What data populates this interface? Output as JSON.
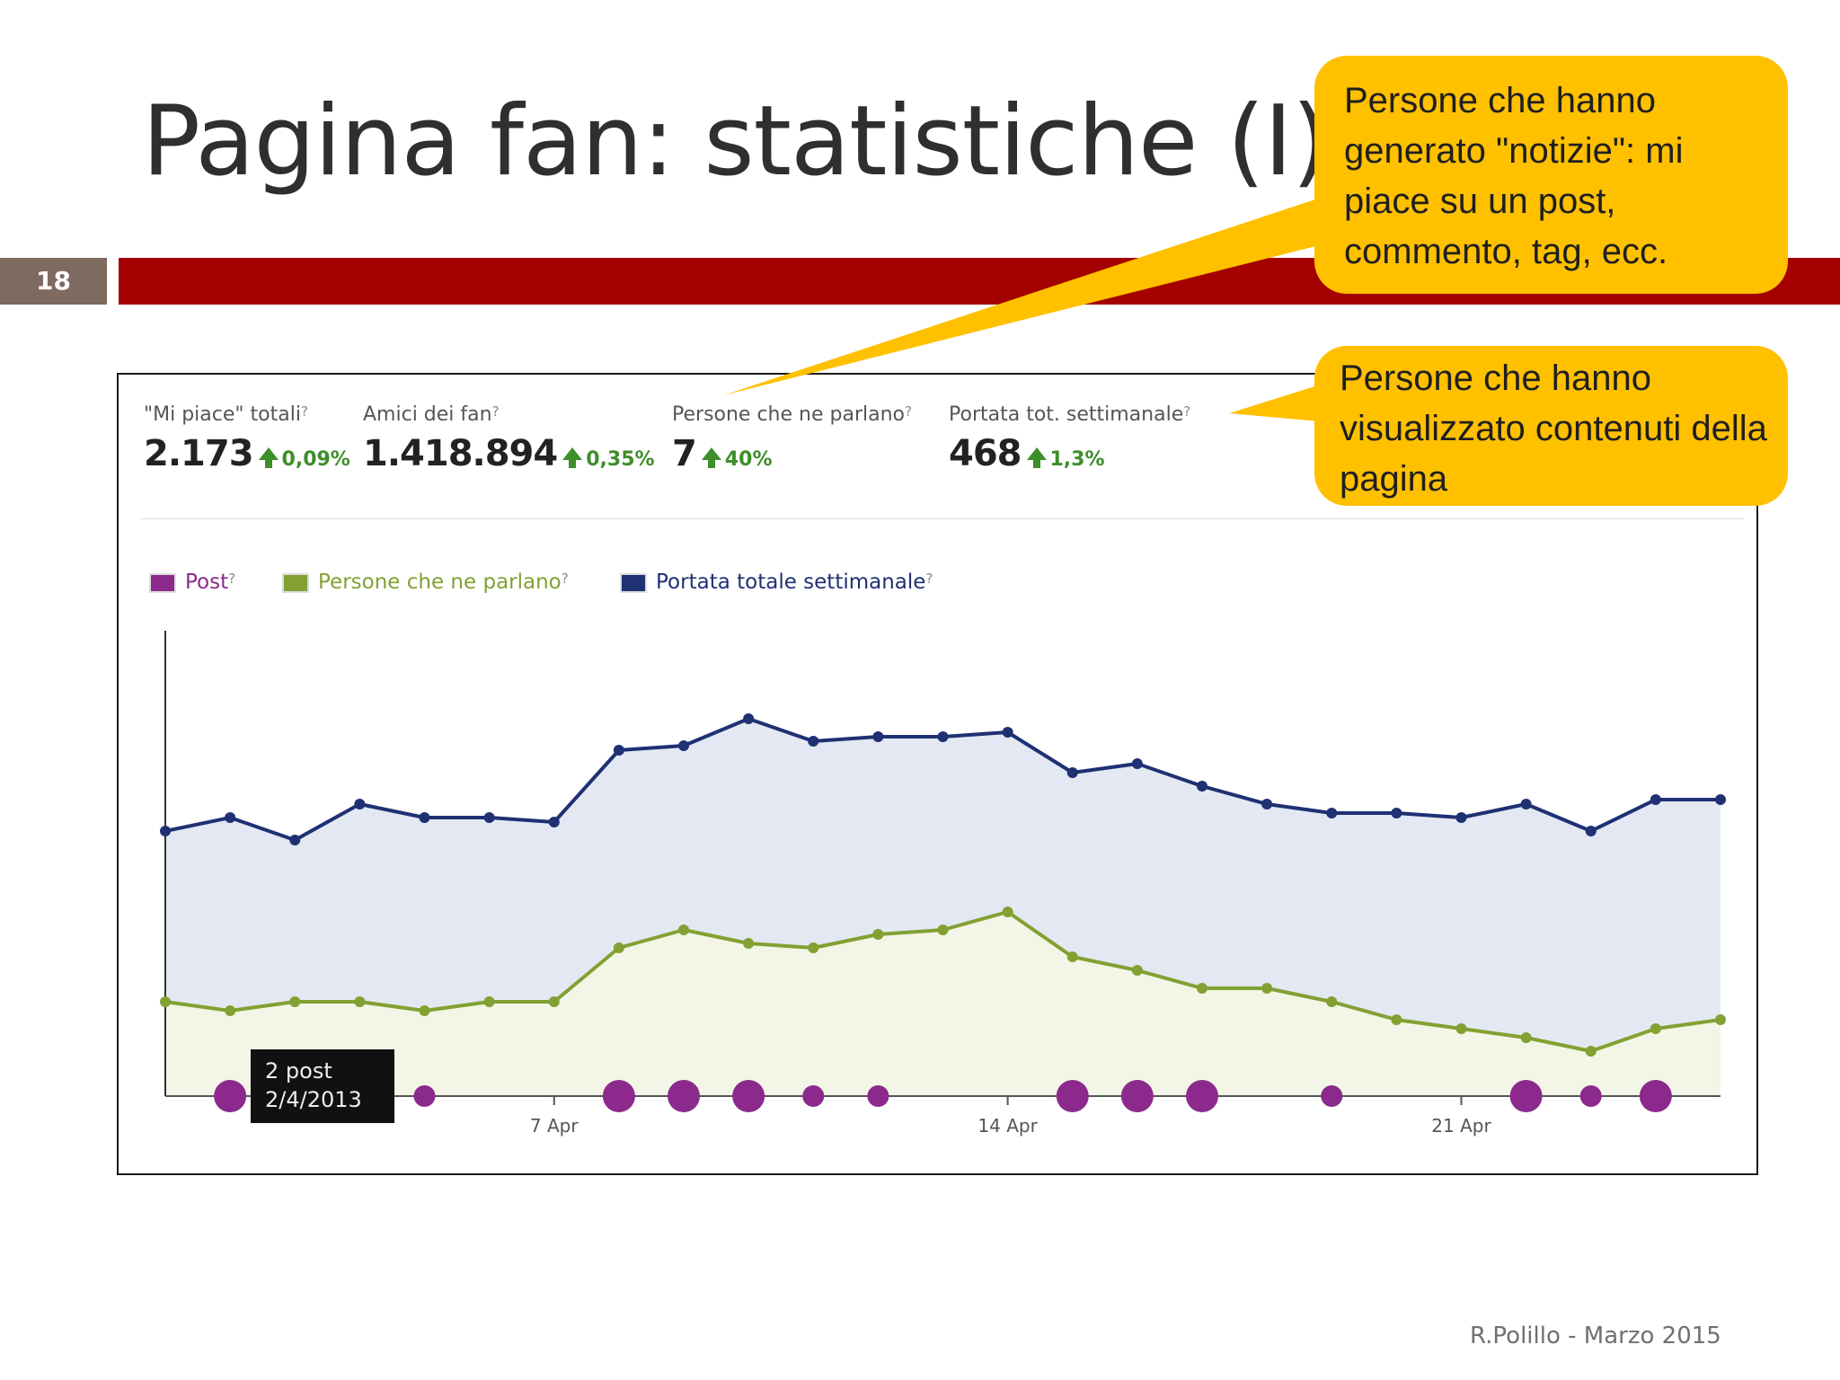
{
  "slide": {
    "title": "Pagina fan: statistiche (I)",
    "number": "18",
    "footer": "R.Polillo - Marzo 2015",
    "accent_color": "#a50000",
    "number_bg": "#7f6a5f"
  },
  "stats": [
    {
      "label": "\"Mi piace\" totali",
      "value": "2.173",
      "change": "0,09%"
    },
    {
      "label": "Amici dei fan",
      "value": "1.418.894",
      "change": "0,35%"
    },
    {
      "label": "Persone che ne parlano",
      "value": "7",
      "change": "40%"
    },
    {
      "label": "Portata tot. settimanale",
      "value": "468",
      "change": "1,3%"
    }
  ],
  "legend": [
    {
      "label": "Post",
      "color": "#8b2a8c"
    },
    {
      "label": "Persone che ne parlano",
      "color": "#82a132"
    },
    {
      "label": "Portata totale settimanale",
      "color": "#1f3073"
    }
  ],
  "tooltip": {
    "line1": "2 post",
    "line2": "2/4/2013"
  },
  "callouts": [
    {
      "text": "Persone che hanno generato \"notizie\": mi piace su un post, commento, tag, ecc.",
      "color": "#ffc000"
    },
    {
      "text": "Persone che hanno visualizzato contenuti della pagina",
      "color": "#ffc000"
    }
  ],
  "chart_data": {
    "type": "line",
    "x_tick_labels": [
      "7 Apr",
      "14 Apr",
      "21 Apr"
    ],
    "x_tick_index": [
      6,
      13,
      20
    ],
    "x_count": 25,
    "ylim": [
      0,
      100
    ],
    "series": [
      {
        "name": "Portata totale settimanale",
        "color": "#1f3073",
        "fill": "#e3e8f3",
        "values": [
          59,
          62,
          57,
          65,
          62,
          62,
          61,
          77,
          78,
          84,
          79,
          80,
          80,
          81,
          72,
          74,
          69,
          65,
          63,
          63,
          62,
          65,
          59,
          66,
          66
        ]
      },
      {
        "name": "Persone che ne parlano",
        "color": "#82a132",
        "fill": "#f3f6e6",
        "values": [
          21,
          19,
          21,
          21,
          19,
          21,
          21,
          33,
          37,
          34,
          33,
          36,
          37,
          41,
          31,
          28,
          24,
          24,
          21,
          17,
          15,
          13,
          10,
          15,
          17
        ]
      },
      {
        "name": "Post",
        "color": "#8b2a8c",
        "values": [
          0,
          2,
          0,
          0,
          1,
          0,
          0,
          2,
          2,
          2,
          1,
          1,
          0,
          0,
          2,
          2,
          2,
          0,
          1,
          0,
          0,
          2,
          1,
          2,
          0
        ]
      }
    ]
  }
}
